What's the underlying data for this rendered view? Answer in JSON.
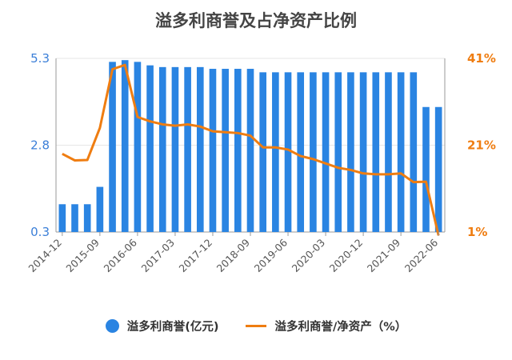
{
  "colors": {
    "bar": "#2a84e2",
    "line": "#ef7d11",
    "left_axis": "#3b7fd8",
    "right_axis": "#ef7d11",
    "grid": "#e6e6e6"
  },
  "chart_data": {
    "type": "bar",
    "title": "溢多利商誉及占净资产比例",
    "x": [
      "2014-12",
      "2015-03",
      "2015-06",
      "2015-09",
      "2015-12",
      "2016-03",
      "2016-06",
      "2016-09",
      "2016-12",
      "2017-03",
      "2017-06",
      "2017-09",
      "2017-12",
      "2018-03",
      "2018-06",
      "2018-09",
      "2018-12",
      "2019-03",
      "2019-06",
      "2019-09",
      "2019-12",
      "2020-03",
      "2020-06",
      "2020-09",
      "2020-12",
      "2021-03",
      "2021-06",
      "2021-09",
      "2021-12",
      "2022-03",
      "2022-06"
    ],
    "x_tick_labels": [
      "2014-12",
      "2015-09",
      "2016-06",
      "2017-03",
      "2017-12",
      "2018-09",
      "2019-06",
      "2020-03",
      "2020-12",
      "2021-09",
      "2022-06"
    ],
    "series": [
      {
        "name": "溢多利商誉(亿元)",
        "type": "bar",
        "axis": "left",
        "values": [
          1.1,
          1.1,
          1.1,
          1.6,
          5.2,
          5.25,
          5.2,
          5.1,
          5.05,
          5.05,
          5.05,
          5.05,
          5.0,
          5.0,
          5.0,
          5.0,
          4.9,
          4.9,
          4.9,
          4.9,
          4.9,
          4.9,
          4.9,
          4.9,
          4.9,
          4.9,
          4.9,
          4.9,
          4.9,
          3.9,
          3.9
        ]
      },
      {
        "name": "溢多利商誉/净资产（%）",
        "type": "line",
        "axis": "right",
        "values": [
          19,
          17.5,
          17.6,
          25,
          38.5,
          39.5,
          27.5,
          26.5,
          25.8,
          25.5,
          25.8,
          25.3,
          24.2,
          24,
          23.8,
          23.2,
          20.5,
          20.5,
          20,
          18.5,
          17.8,
          16.8,
          15.8,
          15.3,
          14.5,
          14.3,
          14.3,
          14.5,
          12.5,
          12.6,
          0.2
        ]
      }
    ],
    "left_axis": {
      "ticks": [
        "0.3",
        "2.8",
        "5.3"
      ],
      "ylim": [
        0.3,
        5.3
      ]
    },
    "right_axis": {
      "ticks": [
        "1%",
        "21%",
        "41%"
      ],
      "ylim": [
        1,
        41
      ]
    },
    "grid": true,
    "legend_position": "bottom"
  }
}
